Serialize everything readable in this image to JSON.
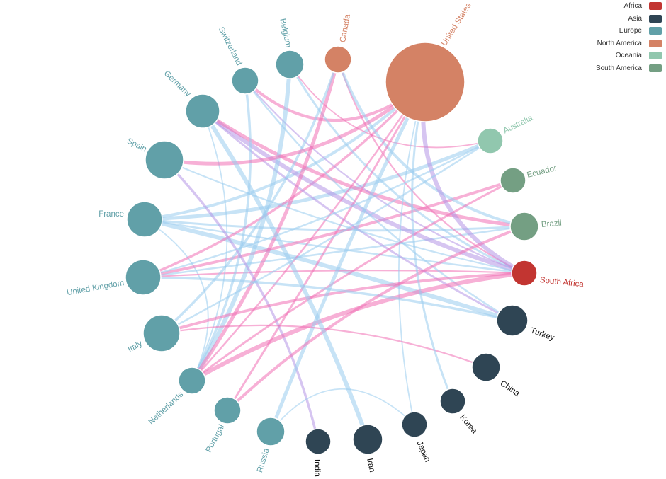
{
  "legend": [
    {
      "label": "Africa",
      "color": "#c23531"
    },
    {
      "label": "Asia",
      "color": "#2f4554"
    },
    {
      "label": "Europe",
      "color": "#61a0a8"
    },
    {
      "label": "North America",
      "color": "#d48265"
    },
    {
      "label": "Oceania",
      "color": "#91c7ae"
    },
    {
      "label": "South America",
      "color": "#749f83"
    }
  ],
  "link_colors": {
    "blue": "#99ccee",
    "pink": "#f06fb4",
    "purple": "#b496e6"
  },
  "nodes": [
    {
      "id": "united-states",
      "label": "United States",
      "category": "North America"
    },
    {
      "id": "australia",
      "label": "Australia",
      "category": "Oceania"
    },
    {
      "id": "ecuador",
      "label": "Ecuador",
      "category": "South America"
    },
    {
      "id": "brazil",
      "label": "Brazil",
      "category": "South America"
    },
    {
      "id": "south-africa",
      "label": "South Africa",
      "category": "Africa"
    },
    {
      "id": "turkey",
      "label": "Turkey",
      "category": "Asia"
    },
    {
      "id": "china",
      "label": "China",
      "category": "Asia"
    },
    {
      "id": "korea",
      "label": "Korea",
      "category": "Asia"
    },
    {
      "id": "japan",
      "label": "Japan",
      "category": "Asia"
    },
    {
      "id": "iran",
      "label": "Iran",
      "category": "Asia"
    },
    {
      "id": "india",
      "label": "India",
      "category": "Asia"
    },
    {
      "id": "russia",
      "label": "Russia",
      "category": "Europe"
    },
    {
      "id": "portugal",
      "label": "Portugal",
      "category": "Europe"
    },
    {
      "id": "netherlands",
      "label": "Netherlands",
      "category": "Europe"
    },
    {
      "id": "italy",
      "label": "Italy",
      "category": "Europe"
    },
    {
      "id": "united-kingdom",
      "label": "United Kingdom",
      "category": "Europe"
    },
    {
      "id": "france",
      "label": "France",
      "category": "Europe"
    },
    {
      "id": "spain",
      "label": "Spain",
      "category": "Europe"
    },
    {
      "id": "germany",
      "label": "Germany",
      "category": "Europe"
    },
    {
      "id": "switzerland",
      "label": "Switzerland",
      "category": "Europe"
    },
    {
      "id": "belgium",
      "label": "Belgium",
      "category": "Europe"
    },
    {
      "id": "canada",
      "label": "Canada",
      "category": "North America"
    }
  ],
  "links": [
    {
      "source": "france",
      "target": "united-states",
      "color": "blue"
    },
    {
      "source": "france",
      "target": "south-africa",
      "color": "blue"
    },
    {
      "source": "france",
      "target": "turkey",
      "color": "blue"
    },
    {
      "source": "france",
      "target": "brazil",
      "color": "blue"
    },
    {
      "source": "france",
      "target": "netherlands",
      "color": "blue"
    },
    {
      "source": "france",
      "target": "australia",
      "color": "blue"
    },
    {
      "source": "united-kingdom",
      "target": "south-africa",
      "color": "pink"
    },
    {
      "source": "united-kingdom",
      "target": "united-states",
      "color": "pink"
    },
    {
      "source": "united-kingdom",
      "target": "ecuador",
      "color": "pink"
    },
    {
      "source": "united-kingdom",
      "target": "brazil",
      "color": "blue"
    },
    {
      "source": "germany",
      "target": "south-africa",
      "color": "purple"
    },
    {
      "source": "germany",
      "target": "turkey",
      "color": "purple"
    },
    {
      "source": "germany",
      "target": "netherlands",
      "color": "blue"
    },
    {
      "source": "germany",
      "target": "brazil",
      "color": "pink"
    },
    {
      "source": "switzerland",
      "target": "south-africa",
      "color": "purple"
    },
    {
      "source": "switzerland",
      "target": "netherlands",
      "color": "blue"
    },
    {
      "source": "switzerland",
      "target": "united-states",
      "color": "pink"
    },
    {
      "source": "switzerland",
      "target": "turkey",
      "color": "blue"
    },
    {
      "source": "belgium",
      "target": "netherlands",
      "color": "blue"
    },
    {
      "source": "belgium",
      "target": "south-africa",
      "color": "blue"
    },
    {
      "source": "belgium",
      "target": "australia",
      "color": "pink"
    },
    {
      "source": "canada",
      "target": "netherlands",
      "color": "pink"
    },
    {
      "source": "canada",
      "target": "south-africa",
      "color": "pink"
    },
    {
      "source": "canada",
      "target": "italy",
      "color": "blue"
    },
    {
      "source": "canada",
      "target": "brazil",
      "color": "blue"
    },
    {
      "source": "united-states",
      "target": "netherlands",
      "color": "pink"
    },
    {
      "source": "united-states",
      "target": "south-africa",
      "color": "purple"
    },
    {
      "source": "united-states",
      "target": "portugal",
      "color": "pink"
    },
    {
      "source": "united-states",
      "target": "japan",
      "color": "blue"
    },
    {
      "source": "united-states",
      "target": "spain",
      "color": "pink"
    },
    {
      "source": "spain",
      "target": "south-africa",
      "color": "blue"
    },
    {
      "source": "spain",
      "target": "india",
      "color": "purple"
    },
    {
      "source": "italy",
      "target": "south-africa",
      "color": "pink"
    },
    {
      "source": "italy",
      "target": "australia",
      "color": "blue"
    },
    {
      "source": "netherlands",
      "target": "south-africa",
      "color": "pink"
    },
    {
      "source": "netherlands",
      "target": "ecuador",
      "color": "pink"
    },
    {
      "source": "russia",
      "target": "japan",
      "color": "blue"
    },
    {
      "source": "russia",
      "target": "united-states",
      "color": "blue"
    },
    {
      "source": "china",
      "target": "italy",
      "color": "pink"
    },
    {
      "source": "turkey",
      "target": "united-kingdom",
      "color": "blue"
    },
    {
      "source": "brazil",
      "target": "portugal",
      "color": "pink"
    },
    {
      "source": "australia",
      "target": "united-kingdom",
      "color": "blue"
    },
    {
      "source": "iran",
      "target": "germany",
      "color": "blue"
    },
    {
      "source": "korea",
      "target": "united-states",
      "color": "blue"
    }
  ]
}
